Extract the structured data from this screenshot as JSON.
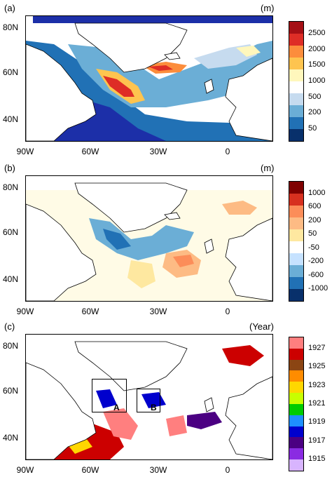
{
  "panels": [
    {
      "label": "(a)",
      "unit": "(m)",
      "colorbar_labels": [
        "2500",
        "2000",
        "1500",
        "1000",
        "500",
        "200",
        "50"
      ],
      "colors": [
        "#a50f15",
        "#de2d26",
        "#fc8d3c",
        "#fec44f",
        "#fff7bc",
        "#ffffff",
        "#c6dbef",
        "#6baed6",
        "#2171b5",
        "#08306b"
      ]
    },
    {
      "label": "(b)",
      "unit": "(m)",
      "colorbar_labels": [
        "1000",
        "600",
        "200",
        "50",
        "-50",
        "-200",
        "-600",
        "-1000"
      ],
      "colors": [
        "#7f0000",
        "#d7301f",
        "#fc8d59",
        "#fdbb84",
        "#fee8a0",
        "#ffffff",
        "#c6e2ff",
        "#6baed6",
        "#2171b5",
        "#08306b"
      ]
    },
    {
      "label": "(c)",
      "unit": "(Year)",
      "colorbar_labels": [
        "1927",
        "1925",
        "1923",
        "1921",
        "1919",
        "1917",
        "1915"
      ],
      "colors": [
        "#ff7f7f",
        "#cc0000",
        "#8b4513",
        "#ff8c00",
        "#ffd700",
        "#c8ff00",
        "#00cc00",
        "#1e90ff",
        "#0000cd",
        "#4b0082",
        "#8a2be2",
        "#d8b4fe"
      ]
    }
  ],
  "axes": {
    "y_labels": [
      "80N",
      "60N",
      "40N"
    ],
    "x_labels": [
      "90W",
      "60W",
      "30W",
      "0"
    ]
  },
  "boxes": [
    "A",
    "B"
  ]
}
